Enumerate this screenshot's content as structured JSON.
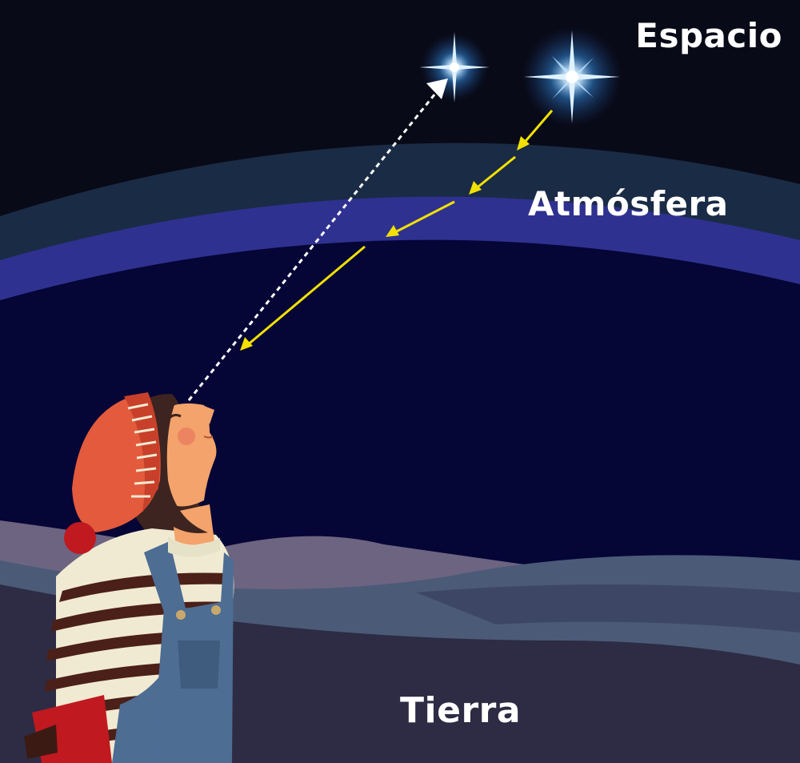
{
  "labels": {
    "space": "Espacio",
    "atmosphere": "Atmósfera",
    "earth": "Tierra"
  },
  "colors": {
    "space": "#090a17",
    "outer_atmosphere": "#1a2b45",
    "atmosphere_band": "#2f3190",
    "inner_sky": "#050536",
    "light_ray": "#f2e100",
    "sight_line": "#ffffff",
    "star_glow": "#3aa0ff",
    "ground": "#2d2c44"
  },
  "icons": {
    "apparent_star": "star-glow-icon",
    "real_star": "star-glow-icon",
    "person": "stargazer-girl-icon"
  }
}
